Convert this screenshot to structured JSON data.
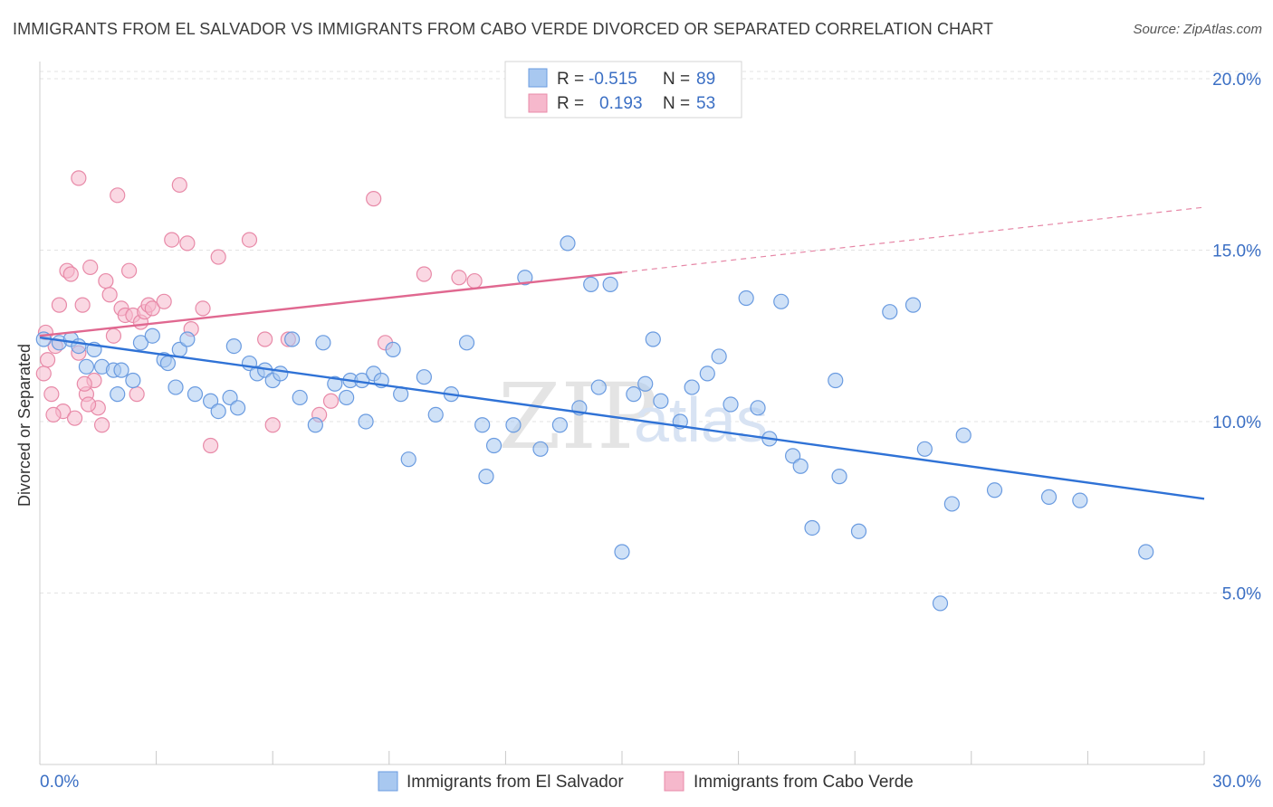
{
  "title": "IMMIGRANTS FROM EL SALVADOR VS IMMIGRANTS FROM CABO VERDE DIVORCED OR SEPARATED CORRELATION CHART",
  "source": "Source: ZipAtlas.com",
  "watermark": {
    "zip": "ZIP",
    "atlas": "atlas"
  },
  "colors": {
    "blue_fill": "#a8c8f0",
    "blue_stroke": "#6a9be0",
    "blue_line": "#2f72d6",
    "pink_fill": "#f6b8cc",
    "pink_stroke": "#e88aa8",
    "pink_line": "#e06890",
    "axis_text": "#3b6fc4",
    "grid": "#e3e3e3"
  },
  "legend": {
    "rows": [
      {
        "r_label": "R =",
        "r_value": "-0.515",
        "n_label": "N =",
        "n_value": "89",
        "color": "blue"
      },
      {
        "r_label": "R =",
        "r_value": "0.193",
        "n_label": "N =",
        "n_value": "53",
        "color": "pink"
      }
    ]
  },
  "bottom_legend": [
    {
      "label": "Immigrants from El Salvador",
      "color": "blue"
    },
    {
      "label": "Immigrants from Cabo Verde",
      "color": "pink"
    }
  ],
  "chart_data": {
    "type": "scatter",
    "title": "IMMIGRANTS FROM EL SALVADOR VS IMMIGRANTS FROM CABO VERDE DIVORCED OR SEPARATED CORRELATION CHART",
    "xlabel": "",
    "ylabel": "Divorced or Separated",
    "xlim": [
      0,
      30
    ],
    "ylim": [
      0,
      20.5
    ],
    "x_tick_labels": [
      "0.0%",
      "30.0%"
    ],
    "y_ticks": [
      5,
      10,
      15,
      20
    ],
    "y_tick_labels": [
      "5.0%",
      "10.0%",
      "15.0%",
      "20.0%"
    ],
    "grid": true,
    "legend_position": "top-center",
    "series": [
      {
        "name": "Immigrants from El Salvador",
        "color": "blue",
        "points": [
          [
            0.1,
            12.4
          ],
          [
            0.5,
            12.3
          ],
          [
            0.8,
            12.4
          ],
          [
            1.2,
            11.6
          ],
          [
            1.4,
            12.1
          ],
          [
            1.6,
            11.6
          ],
          [
            1.9,
            11.5
          ],
          [
            2.0,
            10.8
          ],
          [
            2.1,
            11.5
          ],
          [
            2.6,
            12.3
          ],
          [
            2.9,
            12.5
          ],
          [
            3.2,
            11.8
          ],
          [
            3.3,
            11.7
          ],
          [
            3.6,
            12.1
          ],
          [
            3.8,
            12.4
          ],
          [
            4.0,
            10.8
          ],
          [
            4.4,
            10.6
          ],
          [
            4.6,
            10.3
          ],
          [
            4.9,
            10.7
          ],
          [
            5.1,
            10.4
          ],
          [
            5.4,
            11.7
          ],
          [
            5.6,
            11.4
          ],
          [
            5.8,
            11.5
          ],
          [
            6.0,
            11.2
          ],
          [
            6.2,
            11.4
          ],
          [
            6.5,
            12.4
          ],
          [
            6.7,
            10.7
          ],
          [
            7.1,
            9.9
          ],
          [
            7.3,
            12.3
          ],
          [
            7.6,
            11.1
          ],
          [
            7.9,
            10.7
          ],
          [
            8.0,
            11.2
          ],
          [
            8.3,
            11.2
          ],
          [
            8.6,
            11.4
          ],
          [
            8.8,
            11.2
          ],
          [
            9.1,
            12.1
          ],
          [
            9.3,
            10.8
          ],
          [
            9.5,
            8.9
          ],
          [
            9.9,
            11.3
          ],
          [
            10.2,
            10.2
          ],
          [
            10.6,
            10.8
          ],
          [
            11.0,
            12.3
          ],
          [
            11.4,
            9.9
          ],
          [
            11.5,
            8.4
          ],
          [
            11.7,
            9.3
          ],
          [
            12.2,
            9.9
          ],
          [
            12.5,
            14.2
          ],
          [
            12.9,
            9.2
          ],
          [
            13.4,
            9.9
          ],
          [
            13.6,
            15.2
          ],
          [
            13.9,
            10.4
          ],
          [
            14.2,
            14.0
          ],
          [
            14.4,
            11.0
          ],
          [
            14.7,
            14.0
          ],
          [
            15.0,
            6.2
          ],
          [
            15.3,
            10.8
          ],
          [
            15.6,
            11.1
          ],
          [
            16.0,
            10.6
          ],
          [
            16.5,
            10.0
          ],
          [
            16.8,
            11.0
          ],
          [
            17.2,
            11.4
          ],
          [
            17.5,
            11.9
          ],
          [
            17.8,
            10.5
          ],
          [
            18.2,
            13.6
          ],
          [
            18.5,
            10.4
          ],
          [
            18.8,
            9.5
          ],
          [
            19.1,
            13.5
          ],
          [
            19.4,
            9.0
          ],
          [
            19.6,
            8.7
          ],
          [
            19.9,
            6.9
          ],
          [
            20.5,
            11.2
          ],
          [
            20.6,
            8.4
          ],
          [
            21.1,
            6.8
          ],
          [
            21.9,
            13.2
          ],
          [
            22.5,
            13.4
          ],
          [
            22.8,
            9.2
          ],
          [
            23.2,
            4.7
          ],
          [
            23.5,
            7.6
          ],
          [
            23.8,
            9.6
          ],
          [
            24.6,
            8.0
          ],
          [
            26.0,
            7.8
          ],
          [
            26.8,
            7.7
          ],
          [
            28.5,
            6.2
          ],
          [
            8.4,
            10.0
          ],
          [
            3.5,
            11.0
          ],
          [
            1.0,
            12.2
          ],
          [
            5.0,
            12.2
          ],
          [
            2.4,
            11.2
          ],
          [
            15.8,
            12.4
          ]
        ]
      },
      {
        "name": "Immigrants from Cabo Verde",
        "color": "pink",
        "points": [
          [
            0.1,
            11.4
          ],
          [
            0.2,
            11.8
          ],
          [
            0.3,
            10.8
          ],
          [
            0.4,
            12.2
          ],
          [
            0.5,
            13.4
          ],
          [
            0.6,
            10.3
          ],
          [
            0.7,
            14.4
          ],
          [
            0.8,
            14.3
          ],
          [
            0.9,
            10.1
          ],
          [
            1.0,
            12.0
          ],
          [
            1.0,
            17.1
          ],
          [
            1.1,
            13.4
          ],
          [
            1.2,
            10.8
          ],
          [
            1.3,
            14.5
          ],
          [
            1.4,
            11.2
          ],
          [
            1.5,
            10.4
          ],
          [
            1.6,
            9.9
          ],
          [
            1.7,
            14.1
          ],
          [
            1.8,
            13.7
          ],
          [
            1.9,
            12.5
          ],
          [
            2.0,
            16.6
          ],
          [
            2.1,
            13.3
          ],
          [
            2.2,
            13.1
          ],
          [
            2.3,
            14.4
          ],
          [
            2.4,
            13.1
          ],
          [
            2.5,
            10.8
          ],
          [
            2.6,
            12.9
          ],
          [
            2.7,
            13.2
          ],
          [
            2.8,
            13.4
          ],
          [
            2.9,
            13.3
          ],
          [
            3.2,
            13.5
          ],
          [
            3.4,
            15.3
          ],
          [
            3.6,
            16.9
          ],
          [
            3.8,
            15.2
          ],
          [
            3.9,
            12.7
          ],
          [
            4.2,
            13.3
          ],
          [
            4.4,
            9.3
          ],
          [
            4.6,
            14.8
          ],
          [
            5.4,
            15.3
          ],
          [
            5.8,
            12.4
          ],
          [
            6.0,
            9.9
          ],
          [
            6.4,
            12.4
          ],
          [
            7.2,
            10.2
          ],
          [
            7.5,
            10.6
          ],
          [
            8.6,
            16.5
          ],
          [
            8.9,
            12.3
          ],
          [
            9.9,
            14.3
          ],
          [
            10.8,
            14.2
          ],
          [
            11.2,
            14.1
          ],
          [
            0.15,
            12.6
          ],
          [
            0.35,
            10.2
          ],
          [
            1.15,
            11.1
          ],
          [
            1.25,
            10.5
          ]
        ]
      }
    ],
    "trend_lines": [
      {
        "series": "Immigrants from El Salvador",
        "x": [
          0,
          30
        ],
        "y": [
          12.45,
          7.75
        ],
        "style": "solid"
      },
      {
        "series": "Immigrants from Cabo Verde",
        "x": [
          0,
          15
        ],
        "y": [
          12.5,
          14.35
        ],
        "style": "solid"
      },
      {
        "series": "Immigrants from Cabo Verde",
        "x": [
          15,
          30
        ],
        "y": [
          14.35,
          16.25
        ],
        "style": "dashed"
      }
    ]
  }
}
